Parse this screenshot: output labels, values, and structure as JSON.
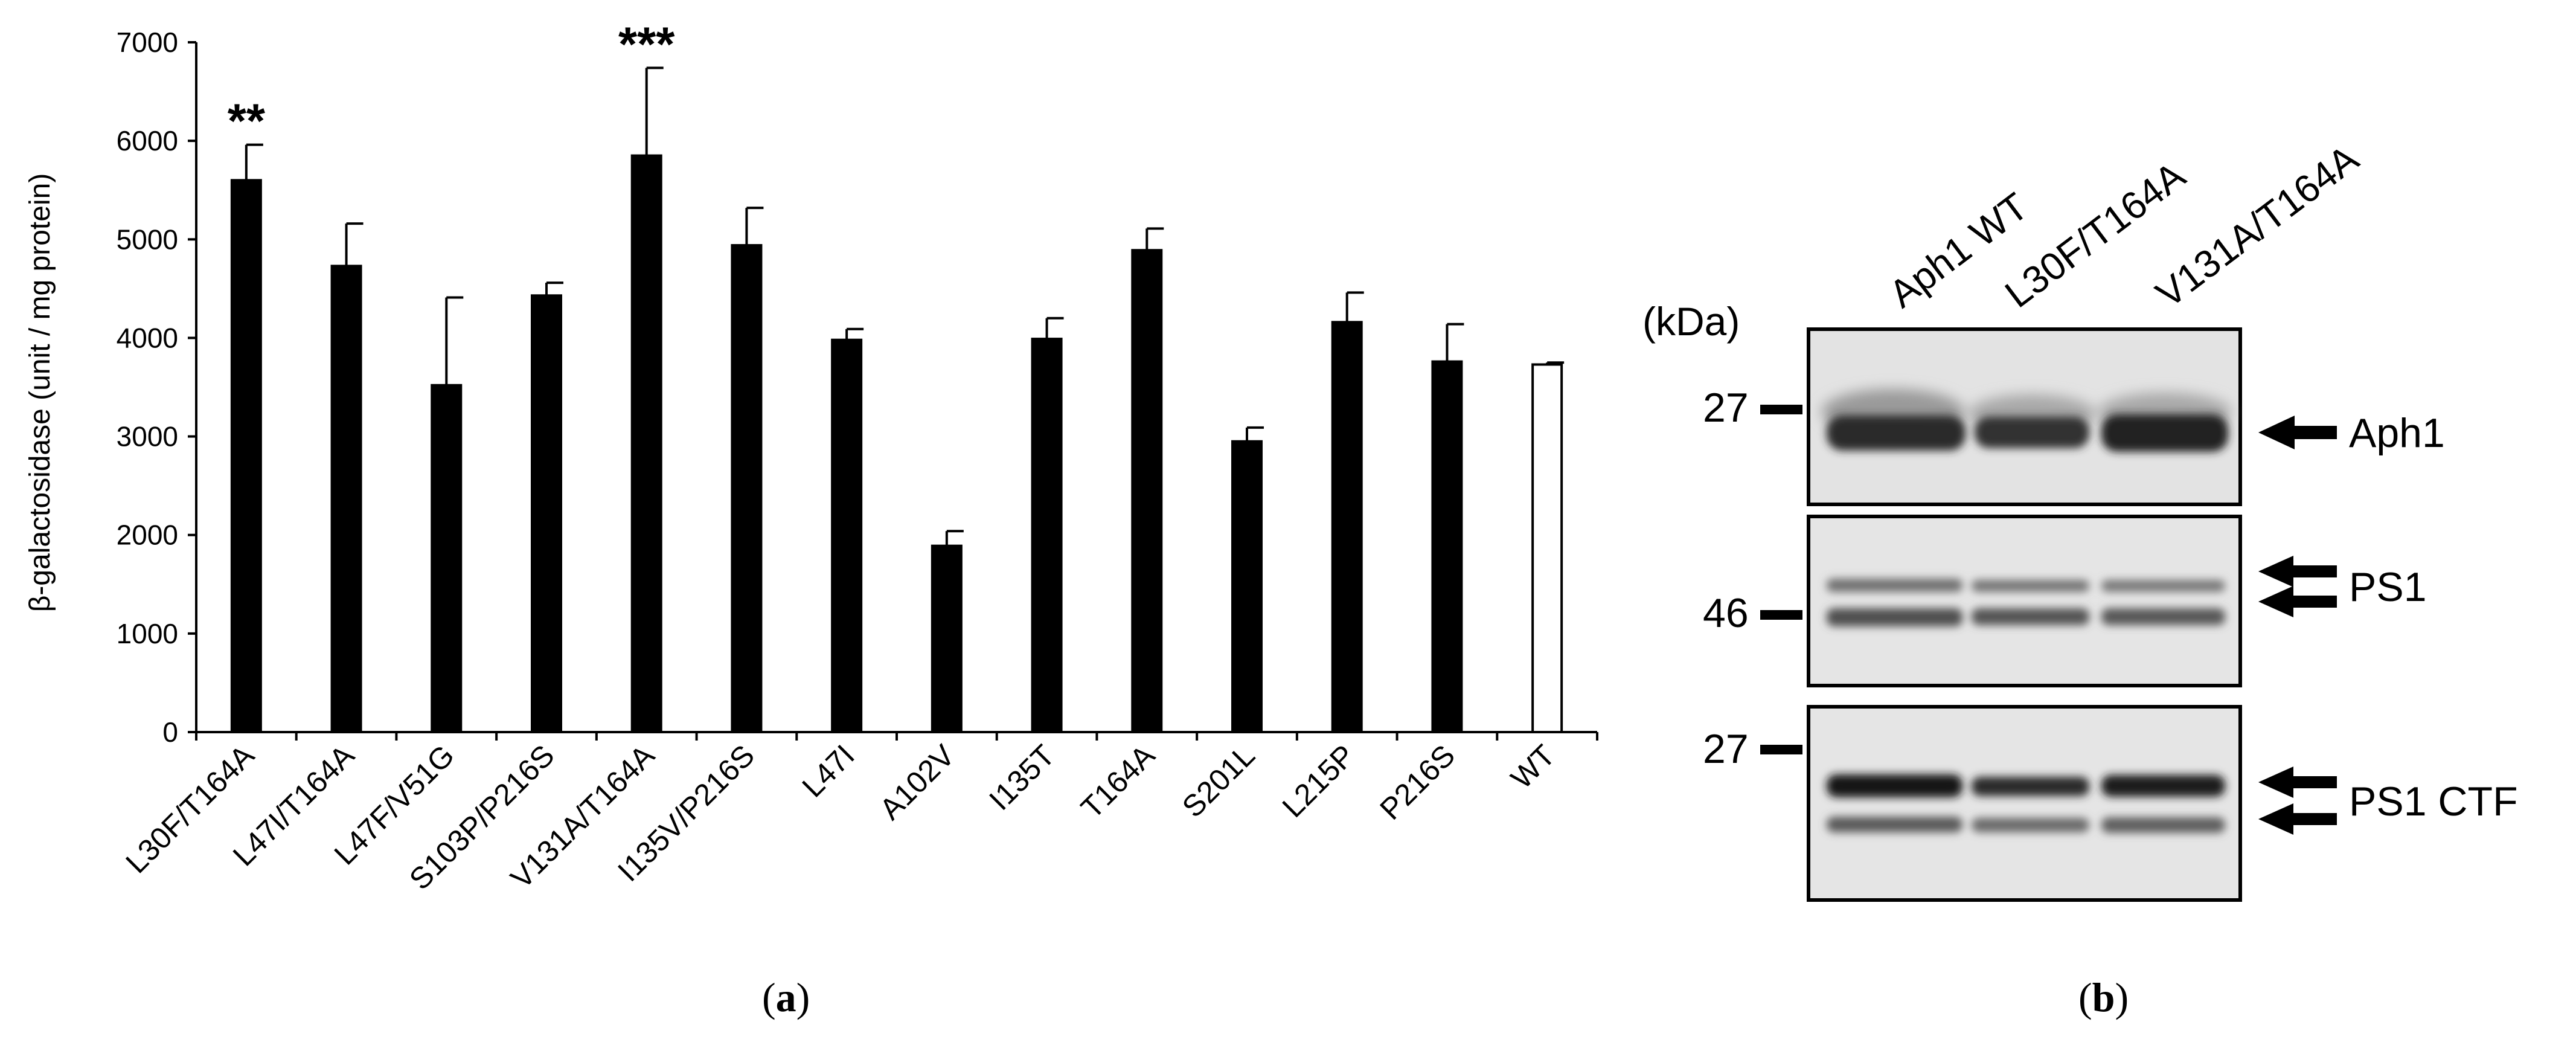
{
  "panel_a": {
    "label": "a",
    "chart_data": {
      "type": "bar",
      "title": "",
      "xlabel": "",
      "ylabel": "β-galactosidase (unit / mg protein)",
      "ylim": [
        0,
        7000
      ],
      "yticks": [
        0,
        1000,
        2000,
        3000,
        4000,
        5000,
        6000,
        7000
      ],
      "grid": false,
      "categories": [
        "L30F/T164A",
        "L47I/T164A",
        "L47F/V51G",
        "S103P/P216S",
        "V131A/T164A",
        "I135V/P216S",
        "L47I",
        "A102V",
        "I135T",
        "T164A",
        "S201L",
        "L215P",
        "P216S",
        "WT"
      ],
      "values": [
        5600,
        4730,
        3520,
        4430,
        5850,
        4940,
        3980,
        1890,
        3990,
        4890,
        2950,
        4160,
        3760,
        3730
      ],
      "errors": [
        360,
        430,
        890,
        130,
        890,
        380,
        110,
        150,
        210,
        220,
        140,
        300,
        380,
        20
      ],
      "annotations": [
        "**",
        "",
        "",
        "",
        "***",
        "",
        "",
        "",
        "",
        "",
        "",
        "",
        "",
        ""
      ],
      "bar_fill": [
        "#000000",
        "#000000",
        "#000000",
        "#000000",
        "#000000",
        "#000000",
        "#000000",
        "#000000",
        "#000000",
        "#000000",
        "#000000",
        "#000000",
        "#000000",
        "#ffffff"
      ]
    }
  },
  "panel_b": {
    "label": "b",
    "lanes": [
      "Aph1 WT",
      "L30F/T164A",
      "V131A/T164A"
    ],
    "unit": "(kDa)",
    "markers": [
      "27",
      "46",
      "27"
    ],
    "blots": [
      {
        "name": "Aph1",
        "bands": 1
      },
      {
        "name": "PS1",
        "bands": 2
      },
      {
        "name": "PS1 CTF",
        "bands": 2
      }
    ]
  }
}
